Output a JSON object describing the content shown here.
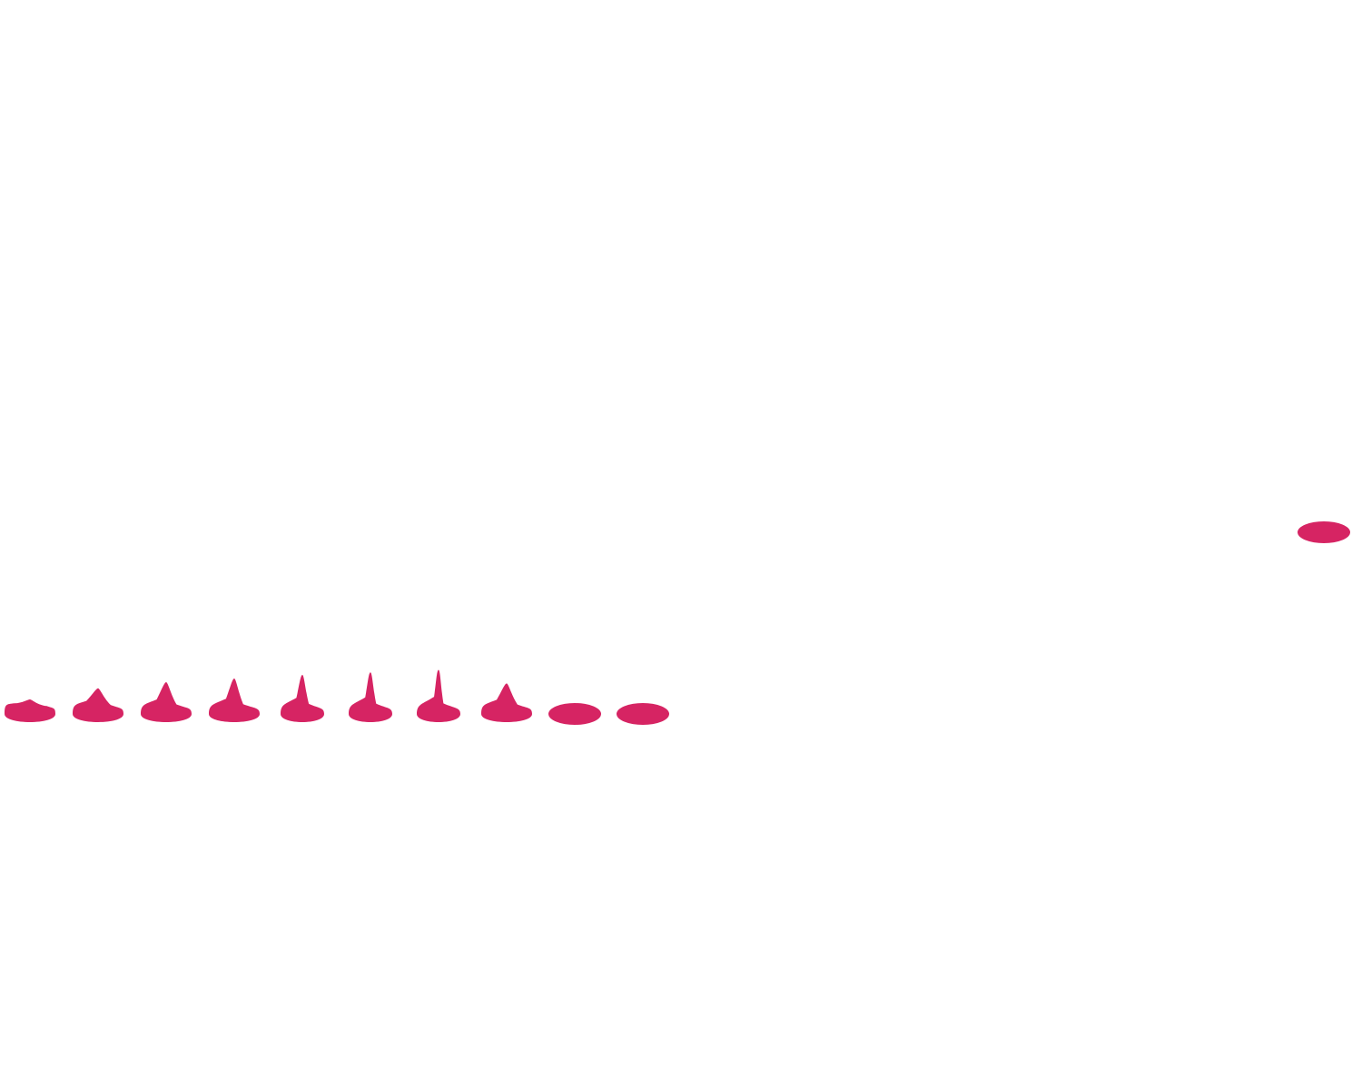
{
  "canvas": {
    "background": "#ffffff"
  },
  "shapes": {
    "fill_color": "#d62463",
    "row_peak_levels": [
      0.15,
      0.6,
      0.85,
      1.0,
      1.15,
      1.25,
      1.35,
      0.8,
      0.0,
      0.0
    ],
    "isolated_peak_level": 0.0
  }
}
